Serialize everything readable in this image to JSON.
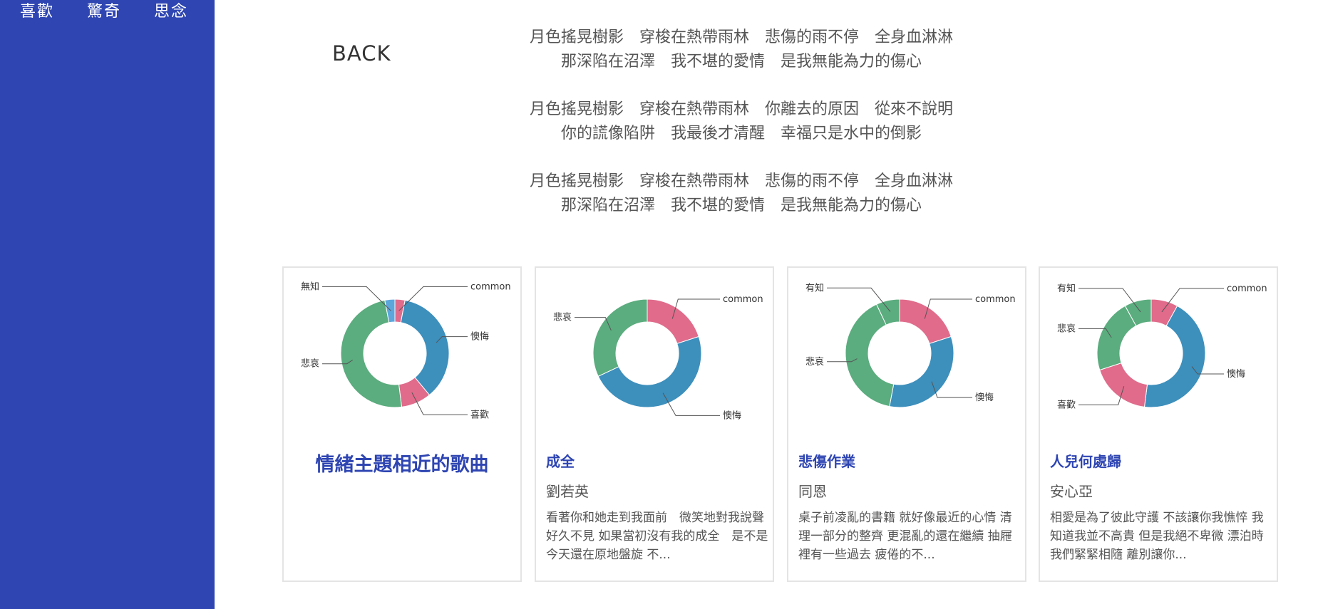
{
  "nav": {
    "items": [
      "喜歡",
      "驚奇",
      "思念"
    ]
  },
  "back_label": "BACK",
  "lyrics": {
    "stanzas": [
      [
        "月色搖晃樹影　穿梭在熱帶雨林　悲傷的雨不停　全身血淋淋",
        "那深陷在沼澤　我不堪的愛情　是我無能為力的傷心"
      ],
      [
        "月色搖晃樹影　穿梭在熱帶雨林　你離去的原因　從來不說明",
        "你的謊像陷阱　我最後才清醒　幸福只是水中的倒影"
      ],
      [
        "月色搖晃樹影　穿梭在熱帶雨林　悲傷的雨不停　全身血淋淋",
        "那深陷在沼澤　我不堪的愛情　是我無能為力的傷心"
      ]
    ]
  },
  "section_title": "情緒主題相近的歌曲",
  "colors": {
    "sidebar": "#2e45b2",
    "accent": "#2e45b2",
    "common": "#e06b8b",
    "懊悔": "#3d8fbc",
    "喜歡": "#e06b8b",
    "悲哀": "#5bac7e",
    "無知": "#5da6dc",
    "有知": "#5bac7e"
  },
  "songs": [
    {
      "title": "成全",
      "artist": "劉若英",
      "snippet": "看著你和她走到我面前　微笑地對我說聲　好久不見 如果當初沒有我的成全　是不是今天還在原地盤旋 不..."
    },
    {
      "title": "悲傷作業",
      "artist": "同恩",
      "snippet": "桌子前凌亂的書籍 就好像最近的心情 清理一部分的整齊 更混亂的還在繼續 抽屜裡有一些過去 疲倦的不..."
    },
    {
      "title": "人兒何處歸",
      "artist": "安心亞",
      "snippet": "相愛是為了彼此守護 不該讓你我憔悴 我知道我並不高貴 但是我絕不卑微 漂泊時我們緊緊相隨 離別讓你..."
    }
  ],
  "chart_data": [
    {
      "type": "pie",
      "donut": true,
      "slices": [
        {
          "label": "common",
          "value": 3,
          "color": "#e06b8b"
        },
        {
          "label": "懊悔",
          "value": 36,
          "color": "#3d8fbc"
        },
        {
          "label": "喜歡",
          "value": 9,
          "color": "#e06b8b"
        },
        {
          "label": "悲哀",
          "value": 49,
          "color": "#5bac7e"
        },
        {
          "label": "無知",
          "value": 3,
          "color": "#5da6dc"
        }
      ]
    },
    {
      "type": "pie",
      "donut": true,
      "slices": [
        {
          "label": "common",
          "value": 20,
          "color": "#e06b8b"
        },
        {
          "label": "懊悔",
          "value": 48,
          "color": "#3d8fbc"
        },
        {
          "label": "悲哀",
          "value": 32,
          "color": "#5bac7e"
        }
      ]
    },
    {
      "type": "pie",
      "donut": true,
      "slices": [
        {
          "label": "common",
          "value": 20,
          "color": "#e06b8b"
        },
        {
          "label": "懊悔",
          "value": 33,
          "color": "#3d8fbc"
        },
        {
          "label": "悲哀",
          "value": 40,
          "color": "#5bac7e"
        },
        {
          "label": "有知",
          "value": 7,
          "color": "#5bac7e"
        }
      ]
    },
    {
      "type": "pie",
      "donut": true,
      "slices": [
        {
          "label": "common",
          "value": 8,
          "color": "#e06b8b"
        },
        {
          "label": "懊悔",
          "value": 44,
          "color": "#3d8fbc"
        },
        {
          "label": "喜歡",
          "value": 18,
          "color": "#e06b8b"
        },
        {
          "label": "悲哀",
          "value": 22,
          "color": "#5bac7e"
        },
        {
          "label": "有知",
          "value": 8,
          "color": "#5bac7e"
        }
      ]
    }
  ]
}
